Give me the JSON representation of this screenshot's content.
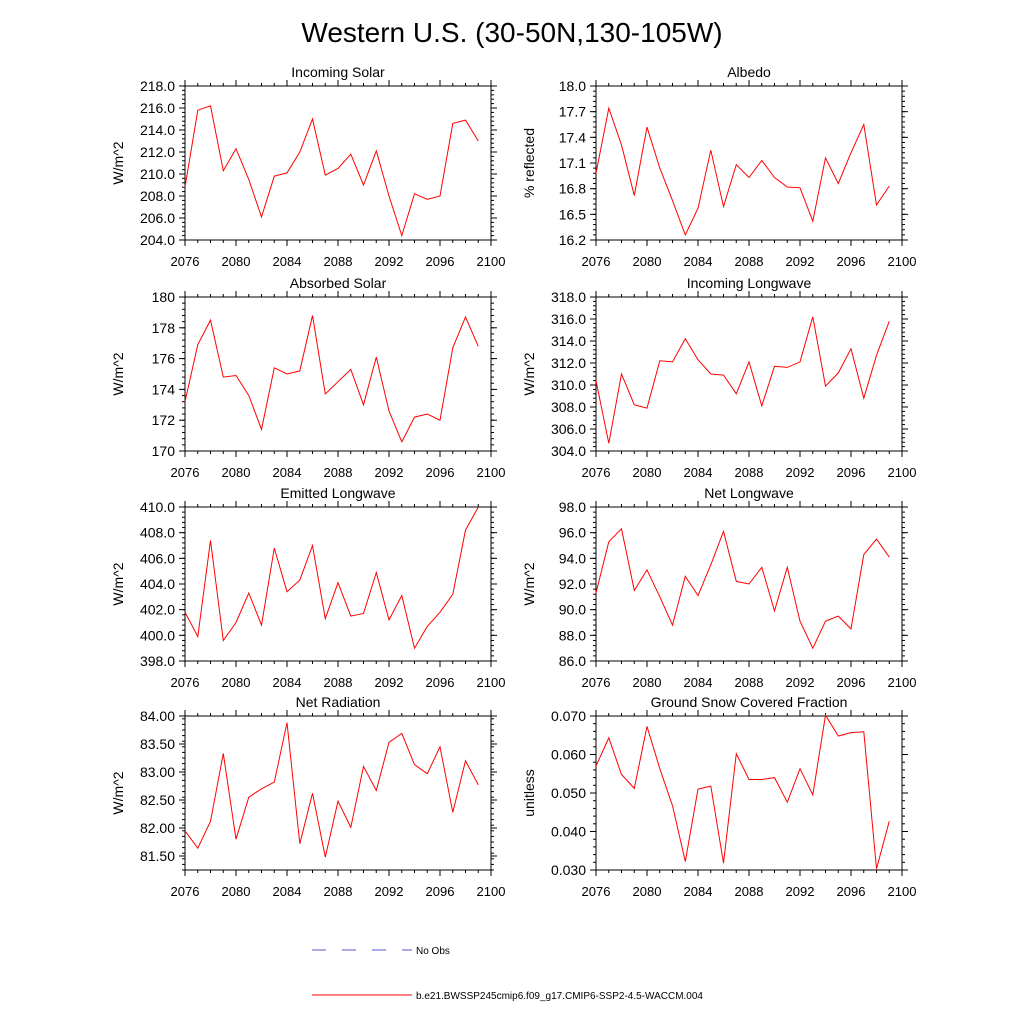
{
  "title": "Western U.S. (30-50N,130-105W)",
  "colors": {
    "series": "#ff0000",
    "obs": "#5555cc",
    "axis": "#000000"
  },
  "legend": {
    "obs_label": "No Obs",
    "series_label": "b.e21.BWSSP245cmip6.f09_g17.CMIP6-SSP2-4.5-WACCM.004"
  },
  "chart_data": [
    {
      "type": "line",
      "title": "Incoming Solar",
      "ylabel": "W/m^2",
      "xlim": [
        2076,
        2100
      ],
      "xticks": [
        2076,
        2080,
        2084,
        2088,
        2092,
        2096,
        2100
      ],
      "ylim": [
        204.0,
        218.0
      ],
      "yticks": [
        "204.0",
        "206.0",
        "208.0",
        "210.0",
        "212.0",
        "214.0",
        "216.0",
        "218.0"
      ],
      "x": [
        2076,
        2077,
        2078,
        2079,
        2080,
        2081,
        2082,
        2083,
        2084,
        2085,
        2086,
        2087,
        2088,
        2089,
        2090,
        2091,
        2092,
        2093,
        2094,
        2095,
        2096,
        2097,
        2098,
        2099
      ],
      "values": [
        208.8,
        215.8,
        216.2,
        210.3,
        212.3,
        209.5,
        206.1,
        209.8,
        210.1,
        212.0,
        215.0,
        209.9,
        210.5,
        211.8,
        209.0,
        212.1,
        208.0,
        204.4,
        208.2,
        207.7,
        208.0,
        214.6,
        214.9,
        213.0
      ]
    },
    {
      "type": "line",
      "title": "Albedo",
      "ylabel": "% reflected",
      "xlim": [
        2076,
        2100
      ],
      "xticks": [
        2076,
        2080,
        2084,
        2088,
        2092,
        2096,
        2100
      ],
      "ylim": [
        16.2,
        18.0
      ],
      "yticks": [
        "16.2",
        "16.5",
        "16.8",
        "17.1",
        "17.4",
        "17.7",
        "18.0"
      ],
      "x": [
        2076,
        2077,
        2078,
        2079,
        2080,
        2081,
        2082,
        2083,
        2084,
        2085,
        2086,
        2087,
        2088,
        2089,
        2090,
        2091,
        2092,
        2093,
        2094,
        2095,
        2096,
        2097,
        2098,
        2099
      ],
      "values": [
        16.98,
        17.74,
        17.31,
        16.72,
        17.52,
        17.04,
        16.66,
        16.26,
        16.57,
        17.25,
        16.59,
        17.08,
        16.93,
        17.13,
        16.93,
        16.82,
        16.81,
        16.42,
        17.16,
        16.86,
        17.22,
        17.55,
        16.61,
        16.83
      ]
    },
    {
      "type": "line",
      "title": "Absorbed Solar",
      "ylabel": "W/m^2",
      "xlim": [
        2076,
        2100
      ],
      "xticks": [
        2076,
        2080,
        2084,
        2088,
        2092,
        2096,
        2100
      ],
      "ylim": [
        170,
        180
      ],
      "yticks": [
        "170",
        "172",
        "174",
        "176",
        "178",
        "180"
      ],
      "x": [
        2076,
        2077,
        2078,
        2079,
        2080,
        2081,
        2082,
        2083,
        2084,
        2085,
        2086,
        2087,
        2088,
        2089,
        2090,
        2091,
        2092,
        2093,
        2094,
        2095,
        2096,
        2097,
        2098,
        2099
      ],
      "values": [
        173.2,
        176.9,
        178.5,
        174.8,
        174.9,
        173.6,
        171.4,
        175.4,
        175.0,
        175.2,
        178.8,
        173.7,
        174.5,
        175.3,
        173.0,
        176.1,
        172.6,
        170.6,
        172.2,
        172.4,
        172.0,
        176.7,
        178.7,
        176.8
      ]
    },
    {
      "type": "line",
      "title": "Incoming Longwave",
      "ylabel": "W/m^2",
      "xlim": [
        2076,
        2100
      ],
      "xticks": [
        2076,
        2080,
        2084,
        2088,
        2092,
        2096,
        2100
      ],
      "ylim": [
        304.0,
        318.0
      ],
      "yticks": [
        "304.0",
        "306.0",
        "308.0",
        "310.0",
        "312.0",
        "314.0",
        "316.0",
        "318.0"
      ],
      "x": [
        2076,
        2077,
        2078,
        2079,
        2080,
        2081,
        2082,
        2083,
        2084,
        2085,
        2086,
        2087,
        2088,
        2089,
        2090,
        2091,
        2092,
        2093,
        2094,
        2095,
        2096,
        2097,
        2098,
        2099
      ],
      "values": [
        310.4,
        304.7,
        311.0,
        308.2,
        307.9,
        312.2,
        312.1,
        314.2,
        312.3,
        311.0,
        310.9,
        309.2,
        312.1,
        308.1,
        311.7,
        311.6,
        312.1,
        316.2,
        309.9,
        311.1,
        313.3,
        308.8,
        312.7,
        315.8
      ]
    },
    {
      "type": "line",
      "title": "Emitted Longwave",
      "ylabel": "W/m^2",
      "xlim": [
        2076,
        2100
      ],
      "xticks": [
        2076,
        2080,
        2084,
        2088,
        2092,
        2096,
        2100
      ],
      "ylim": [
        398.0,
        410.0
      ],
      "yticks": [
        "398.0",
        "400.0",
        "402.0",
        "404.0",
        "406.0",
        "408.0",
        "410.0"
      ],
      "x": [
        2076,
        2077,
        2078,
        2079,
        2080,
        2081,
        2082,
        2083,
        2084,
        2085,
        2086,
        2087,
        2088,
        2089,
        2090,
        2091,
        2092,
        2093,
        2094,
        2095,
        2096,
        2097,
        2098,
        2099
      ],
      "values": [
        401.8,
        399.9,
        407.4,
        399.6,
        401.0,
        403.3,
        400.8,
        406.8,
        403.4,
        404.3,
        407.0,
        401.3,
        404.1,
        401.5,
        401.7,
        404.9,
        401.2,
        403.1,
        399.0,
        400.7,
        401.8,
        403.2,
        408.2,
        410.0
      ]
    },
    {
      "type": "line",
      "title": "Net Longwave",
      "ylabel": "W/m^2",
      "xlim": [
        2076,
        2100
      ],
      "xticks": [
        2076,
        2080,
        2084,
        2088,
        2092,
        2096,
        2100
      ],
      "ylim": [
        86.0,
        98.0
      ],
      "yticks": [
        "86.0",
        "88.0",
        "90.0",
        "92.0",
        "94.0",
        "96.0",
        "98.0"
      ],
      "x": [
        2076,
        2077,
        2078,
        2079,
        2080,
        2081,
        2082,
        2083,
        2084,
        2085,
        2086,
        2087,
        2088,
        2089,
        2090,
        2091,
        2092,
        2093,
        2094,
        2095,
        2096,
        2097,
        2098,
        2099
      ],
      "values": [
        91.3,
        95.3,
        96.3,
        91.5,
        93.1,
        91.0,
        88.8,
        92.6,
        91.1,
        93.5,
        96.1,
        92.2,
        92.0,
        93.3,
        89.9,
        93.3,
        89.1,
        87.0,
        89.1,
        89.5,
        88.5,
        94.3,
        95.5,
        94.1
      ]
    },
    {
      "type": "line",
      "title": "Net Radiation",
      "ylabel": "W/m^2",
      "xlim": [
        2076,
        2100
      ],
      "xticks": [
        2076,
        2080,
        2084,
        2088,
        2092,
        2096,
        2100
      ],
      "ylim": [
        81.25,
        84.0
      ],
      "yticks": [
        "81.50",
        "82.00",
        "82.50",
        "83.00",
        "83.50",
        "84.00"
      ],
      "x": [
        2076,
        2077,
        2078,
        2079,
        2080,
        2081,
        2082,
        2083,
        2084,
        2085,
        2086,
        2087,
        2088,
        2089,
        2090,
        2091,
        2092,
        2093,
        2094,
        2095,
        2096,
        2097,
        2098,
        2099
      ],
      "values": [
        81.95,
        81.64,
        82.12,
        83.33,
        81.8,
        82.55,
        82.7,
        82.82,
        83.88,
        81.72,
        82.62,
        81.48,
        82.48,
        82.01,
        83.1,
        82.67,
        83.53,
        83.69,
        83.13,
        82.97,
        83.45,
        82.28,
        83.2,
        82.77
      ]
    },
    {
      "type": "line",
      "title": "Ground Snow Covered Fraction",
      "ylabel": "unitless",
      "xlim": [
        2076,
        2100
      ],
      "xticks": [
        2076,
        2080,
        2084,
        2088,
        2092,
        2096,
        2100
      ],
      "ylim": [
        0.03,
        0.07
      ],
      "yticks": [
        "0.030",
        "0.040",
        "0.050",
        "0.060",
        "0.070"
      ],
      "x": [
        2076,
        2077,
        2078,
        2079,
        2080,
        2081,
        2082,
        2083,
        2084,
        2085,
        2086,
        2087,
        2088,
        2089,
        2090,
        2091,
        2092,
        2093,
        2094,
        2095,
        2096,
        2097,
        2098,
        2099
      ],
      "values": [
        0.057,
        0.0643,
        0.0548,
        0.0512,
        0.0673,
        0.0563,
        0.0467,
        0.0322,
        0.051,
        0.0518,
        0.0318,
        0.0602,
        0.0535,
        0.0535,
        0.054,
        0.0476,
        0.0563,
        0.0495,
        0.0702,
        0.0648,
        0.0657,
        0.0659,
        0.0303,
        0.0427
      ]
    }
  ]
}
